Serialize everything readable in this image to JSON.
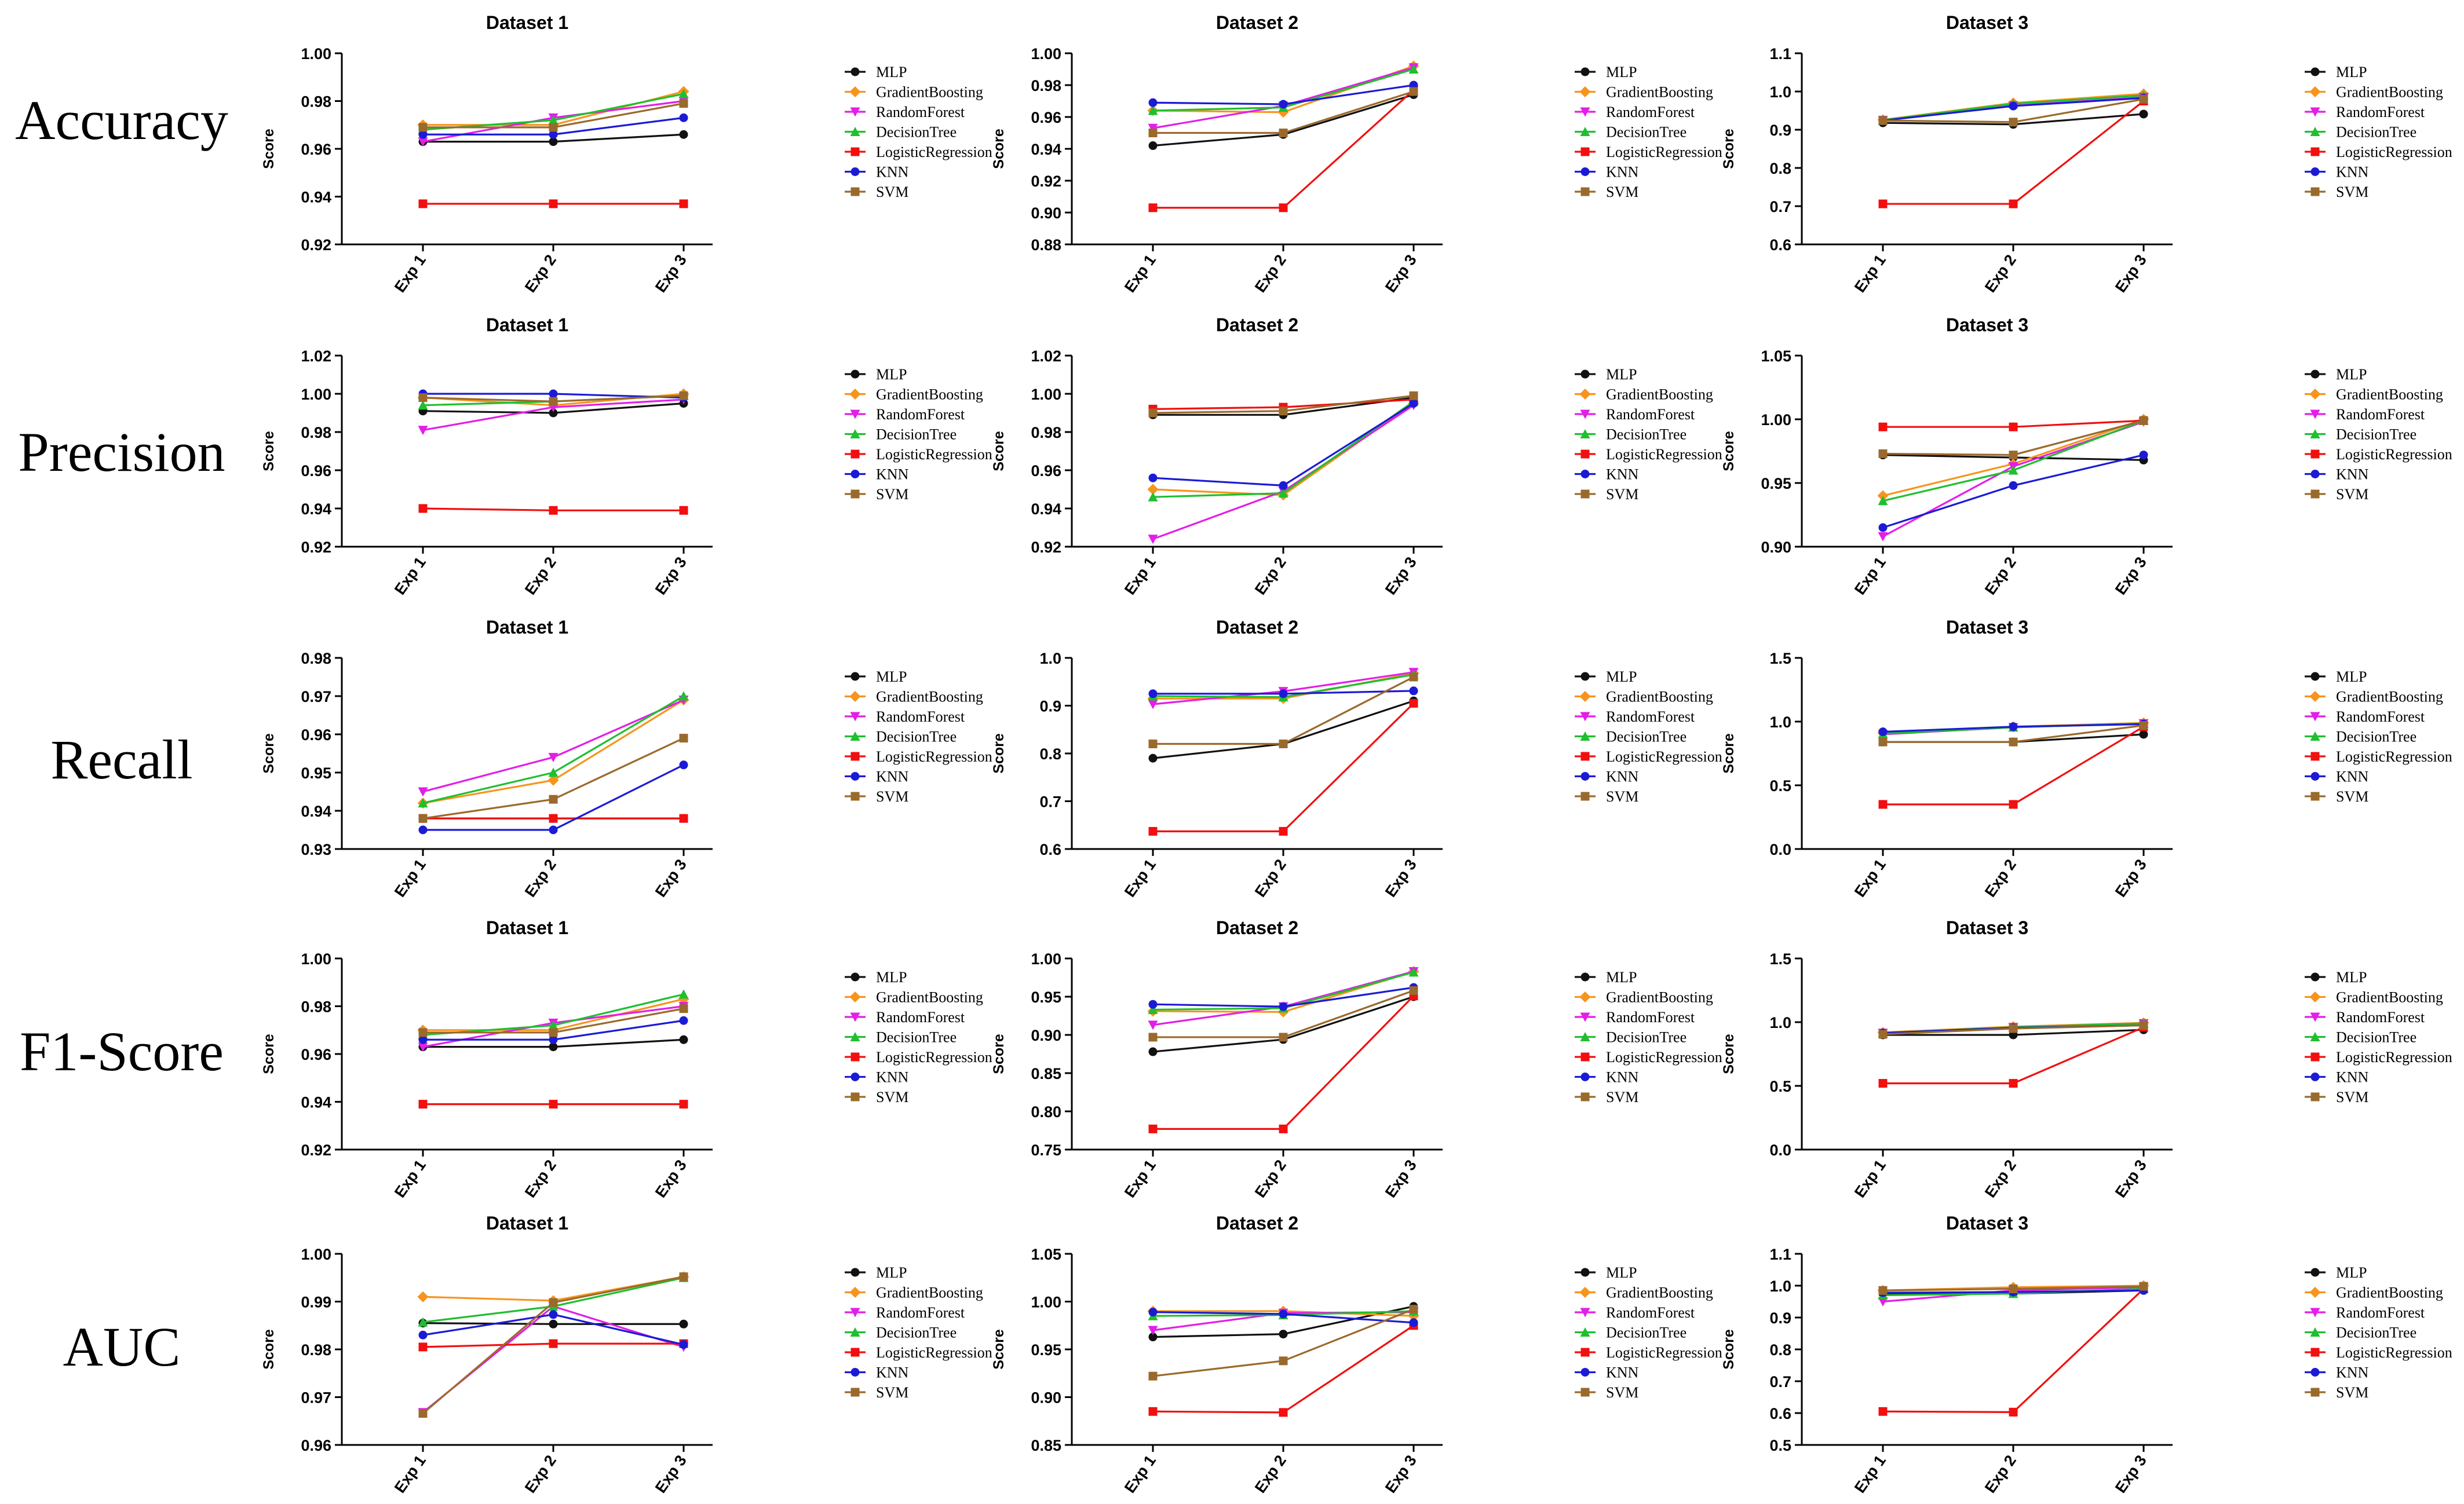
{
  "series_names": [
    "MLP",
    "GradientBoosting",
    "RandomForest",
    "DecisionTree",
    "LogisticRegression",
    "KNN",
    "SVM"
  ],
  "series_colors": [
    "#111111",
    "#f7941d",
    "#e31ee8",
    "#1fbf2f",
    "#f20f0f",
    "#1b1bd6",
    "#9a6a2c"
  ],
  "y_axis_label": "Score",
  "x_categories": [
    "Exp 1",
    "Exp 2",
    "Exp 3"
  ],
  "row_labels": [
    "Accuracy",
    "Precision",
    "Recall",
    "F1-Score",
    "AUC"
  ],
  "chart_data": [
    {
      "type": "line",
      "metric": "Accuracy",
      "title": "Dataset 1",
      "ylim": [
        0.92,
        1.0
      ],
      "yticks": [
        0.92,
        0.94,
        0.96,
        0.98,
        1.0
      ],
      "tick_decimals": 2,
      "series": [
        {
          "name": "MLP",
          "values": [
            0.963,
            0.963,
            0.966
          ]
        },
        {
          "name": "GradientBoosting",
          "values": [
            0.97,
            0.97,
            0.984
          ]
        },
        {
          "name": "RandomForest",
          "values": [
            0.963,
            0.973,
            0.98
          ]
        },
        {
          "name": "DecisionTree",
          "values": [
            0.968,
            0.972,
            0.983
          ]
        },
        {
          "name": "LogisticRegression",
          "values": [
            0.937,
            0.937,
            0.937
          ]
        },
        {
          "name": "KNN",
          "values": [
            0.966,
            0.966,
            0.973
          ]
        },
        {
          "name": "SVM",
          "values": [
            0.969,
            0.969,
            0.979
          ]
        }
      ]
    },
    {
      "type": "line",
      "metric": "Accuracy",
      "title": "Dataset 2",
      "ylim": [
        0.88,
        1.0
      ],
      "yticks": [
        0.88,
        0.9,
        0.92,
        0.94,
        0.96,
        0.98,
        1.0
      ],
      "tick_decimals": 2,
      "series": [
        {
          "name": "MLP",
          "values": [
            0.942,
            0.949,
            0.974
          ]
        },
        {
          "name": "GradientBoosting",
          "values": [
            0.964,
            0.963,
            0.992
          ]
        },
        {
          "name": "RandomForest",
          "values": [
            0.953,
            0.967,
            0.991
          ]
        },
        {
          "name": "DecisionTree",
          "values": [
            0.964,
            0.966,
            0.99
          ]
        },
        {
          "name": "LogisticRegression",
          "values": [
            0.903,
            0.903,
            0.977
          ]
        },
        {
          "name": "KNN",
          "values": [
            0.969,
            0.968,
            0.98
          ]
        },
        {
          "name": "SVM",
          "values": [
            0.95,
            0.95,
            0.976
          ]
        }
      ]
    },
    {
      "type": "line",
      "metric": "Accuracy",
      "title": "Dataset 3",
      "ylim": [
        0.6,
        1.1
      ],
      "yticks": [
        0.6,
        0.7,
        0.8,
        0.9,
        1.0,
        1.1
      ],
      "tick_decimals": 1,
      "series": [
        {
          "name": "MLP",
          "values": [
            0.918,
            0.914,
            0.941
          ]
        },
        {
          "name": "GradientBoosting",
          "values": [
            0.926,
            0.97,
            0.994
          ]
        },
        {
          "name": "RandomForest",
          "values": [
            0.925,
            0.963,
            0.985
          ]
        },
        {
          "name": "DecisionTree",
          "values": [
            0.925,
            0.968,
            0.99
          ]
        },
        {
          "name": "LogisticRegression",
          "values": [
            0.706,
            0.706,
            0.975
          ]
        },
        {
          "name": "KNN",
          "values": [
            0.924,
            0.962,
            0.983
          ]
        },
        {
          "name": "SVM",
          "values": [
            0.924,
            0.92,
            0.98
          ]
        }
      ]
    },
    {
      "type": "line",
      "metric": "Precision",
      "title": "Dataset 1",
      "ylim": [
        0.92,
        1.02
      ],
      "yticks": [
        0.92,
        0.94,
        0.96,
        0.98,
        1.0,
        1.02
      ],
      "tick_decimals": 2,
      "series": [
        {
          "name": "MLP",
          "values": [
            0.991,
            0.99,
            0.995
          ]
        },
        {
          "name": "GradientBoosting",
          "values": [
            0.998,
            0.994,
            1.0
          ]
        },
        {
          "name": "RandomForest",
          "values": [
            0.981,
            0.993,
            0.997
          ]
        },
        {
          "name": "DecisionTree",
          "values": [
            0.994,
            0.996,
            0.999
          ]
        },
        {
          "name": "LogisticRegression",
          "values": [
            0.94,
            0.939,
            0.939
          ]
        },
        {
          "name": "KNN",
          "values": [
            1.0,
            1.0,
            0.998
          ]
        },
        {
          "name": "SVM",
          "values": [
            0.998,
            0.996,
            0.999
          ]
        }
      ]
    },
    {
      "type": "line",
      "metric": "Precision",
      "title": "Dataset 2",
      "ylim": [
        0.92,
        1.02
      ],
      "yticks": [
        0.92,
        0.94,
        0.96,
        0.98,
        1.0,
        1.02
      ],
      "tick_decimals": 2,
      "series": [
        {
          "name": "MLP",
          "values": [
            0.989,
            0.989,
            0.998
          ]
        },
        {
          "name": "GradientBoosting",
          "values": [
            0.95,
            0.947,
            0.995
          ]
        },
        {
          "name": "RandomForest",
          "values": [
            0.924,
            0.949,
            0.994
          ]
        },
        {
          "name": "DecisionTree",
          "values": [
            0.946,
            0.948,
            0.996
          ]
        },
        {
          "name": "LogisticRegression",
          "values": [
            0.992,
            0.993,
            0.997
          ]
        },
        {
          "name": "KNN",
          "values": [
            0.956,
            0.952,
            0.995
          ]
        },
        {
          "name": "SVM",
          "values": [
            0.99,
            0.991,
            0.999
          ]
        }
      ]
    },
    {
      "type": "line",
      "metric": "Precision",
      "title": "Dataset 3",
      "ylim": [
        0.9,
        1.05
      ],
      "yticks": [
        0.9,
        0.95,
        1.0,
        1.05
      ],
      "tick_decimals": 2,
      "series": [
        {
          "name": "MLP",
          "values": [
            0.972,
            0.97,
            0.968
          ]
        },
        {
          "name": "GradientBoosting",
          "values": [
            0.94,
            0.965,
            1.0
          ]
        },
        {
          "name": "RandomForest",
          "values": [
            0.908,
            0.963,
            0.998
          ]
        },
        {
          "name": "DecisionTree",
          "values": [
            0.936,
            0.96,
            0.999
          ]
        },
        {
          "name": "LogisticRegression",
          "values": [
            0.994,
            0.994,
            0.999
          ]
        },
        {
          "name": "KNN",
          "values": [
            0.915,
            0.948,
            0.972
          ]
        },
        {
          "name": "SVM",
          "values": [
            0.973,
            0.972,
            0.999
          ]
        }
      ]
    },
    {
      "type": "line",
      "metric": "Recall",
      "title": "Dataset 1",
      "ylim": [
        0.93,
        0.98
      ],
      "yticks": [
        0.93,
        0.94,
        0.95,
        0.96,
        0.97,
        0.98
      ],
      "tick_decimals": 2,
      "series": [
        {
          "name": "MLP",
          "values": [
            0.938,
            0.938,
            0.938
          ]
        },
        {
          "name": "GradientBoosting",
          "values": [
            0.942,
            0.948,
            0.969
          ]
        },
        {
          "name": "RandomForest",
          "values": [
            0.945,
            0.954,
            0.969
          ]
        },
        {
          "name": "DecisionTree",
          "values": [
            0.942,
            0.95,
            0.97
          ]
        },
        {
          "name": "LogisticRegression",
          "values": [
            0.938,
            0.938,
            0.938
          ]
        },
        {
          "name": "KNN",
          "values": [
            0.935,
            0.935,
            0.952
          ]
        },
        {
          "name": "SVM",
          "values": [
            0.938,
            0.943,
            0.959
          ]
        }
      ]
    },
    {
      "type": "line",
      "metric": "Recall",
      "title": "Dataset 2",
      "ylim": [
        0.6,
        1.0
      ],
      "yticks": [
        0.6,
        0.7,
        0.8,
        0.9,
        1.0
      ],
      "tick_decimals": 1,
      "series": [
        {
          "name": "MLP",
          "values": [
            0.79,
            0.82,
            0.91
          ]
        },
        {
          "name": "GradientBoosting",
          "values": [
            0.915,
            0.915,
            0.968
          ]
        },
        {
          "name": "RandomForest",
          "values": [
            0.903,
            0.93,
            0.97
          ]
        },
        {
          "name": "DecisionTree",
          "values": [
            0.92,
            0.918,
            0.965
          ]
        },
        {
          "name": "LogisticRegression",
          "values": [
            0.637,
            0.637,
            0.905
          ]
        },
        {
          "name": "KNN",
          "values": [
            0.925,
            0.925,
            0.931
          ]
        },
        {
          "name": "SVM",
          "values": [
            0.82,
            0.82,
            0.96
          ]
        }
      ]
    },
    {
      "type": "line",
      "metric": "Recall",
      "title": "Dataset 3",
      "ylim": [
        0.0,
        1.5
      ],
      "yticks": [
        0.0,
        0.5,
        1.0,
        1.5
      ],
      "tick_decimals": 1,
      "series": [
        {
          "name": "MLP",
          "values": [
            0.84,
            0.84,
            0.9
          ]
        },
        {
          "name": "GradientBoosting",
          "values": [
            0.91,
            0.96,
            0.99
          ]
        },
        {
          "name": "RandomForest",
          "values": [
            0.9,
            0.955,
            0.985
          ]
        },
        {
          "name": "DecisionTree",
          "values": [
            0.905,
            0.955,
            0.985
          ]
        },
        {
          "name": "LogisticRegression",
          "values": [
            0.35,
            0.35,
            0.96
          ]
        },
        {
          "name": "KNN",
          "values": [
            0.92,
            0.96,
            0.98
          ]
        },
        {
          "name": "SVM",
          "values": [
            0.84,
            0.84,
            0.97
          ]
        }
      ]
    },
    {
      "type": "line",
      "metric": "F1-Score",
      "title": "Dataset 1",
      "ylim": [
        0.92,
        1.0
      ],
      "yticks": [
        0.92,
        0.94,
        0.96,
        0.98,
        1.0
      ],
      "tick_decimals": 2,
      "series": [
        {
          "name": "MLP",
          "values": [
            0.963,
            0.963,
            0.966
          ]
        },
        {
          "name": "GradientBoosting",
          "values": [
            0.97,
            0.97,
            0.983
          ]
        },
        {
          "name": "RandomForest",
          "values": [
            0.963,
            0.973,
            0.98
          ]
        },
        {
          "name": "DecisionTree",
          "values": [
            0.968,
            0.972,
            0.985
          ]
        },
        {
          "name": "LogisticRegression",
          "values": [
            0.939,
            0.939,
            0.939
          ]
        },
        {
          "name": "KNN",
          "values": [
            0.966,
            0.966,
            0.974
          ]
        },
        {
          "name": "SVM",
          "values": [
            0.969,
            0.969,
            0.979
          ]
        }
      ]
    },
    {
      "type": "line",
      "metric": "F1-Score",
      "title": "Dataset 2",
      "ylim": [
        0.75,
        1.0
      ],
      "yticks": [
        0.75,
        0.8,
        0.85,
        0.9,
        0.95,
        1.0
      ],
      "tick_decimals": 2,
      "series": [
        {
          "name": "MLP",
          "values": [
            0.878,
            0.894,
            0.95
          ]
        },
        {
          "name": "GradientBoosting",
          "values": [
            0.931,
            0.93,
            0.983
          ]
        },
        {
          "name": "RandomForest",
          "values": [
            0.913,
            0.937,
            0.983
          ]
        },
        {
          "name": "DecisionTree",
          "values": [
            0.933,
            0.935,
            0.982
          ]
        },
        {
          "name": "LogisticRegression",
          "values": [
            0.777,
            0.777,
            0.951
          ]
        },
        {
          "name": "KNN",
          "values": [
            0.94,
            0.937,
            0.962
          ]
        },
        {
          "name": "SVM",
          "values": [
            0.897,
            0.897,
            0.958
          ]
        }
      ]
    },
    {
      "type": "line",
      "metric": "F1-Score",
      "title": "Dataset 3",
      "ylim": [
        0.0,
        1.5
      ],
      "yticks": [
        0.0,
        0.5,
        1.0,
        1.5
      ],
      "tick_decimals": 1,
      "series": [
        {
          "name": "MLP",
          "values": [
            0.9,
            0.9,
            0.94
          ]
        },
        {
          "name": "GradientBoosting",
          "values": [
            0.92,
            0.965,
            0.995
          ]
        },
        {
          "name": "RandomForest",
          "values": [
            0.915,
            0.96,
            0.99
          ]
        },
        {
          "name": "DecisionTree",
          "values": [
            0.915,
            0.96,
            0.99
          ]
        },
        {
          "name": "LogisticRegression",
          "values": [
            0.52,
            0.52,
            0.96
          ]
        },
        {
          "name": "KNN",
          "values": [
            0.915,
            0.955,
            0.975
          ]
        },
        {
          "name": "SVM",
          "values": [
            0.905,
            0.95,
            0.975
          ]
        }
      ]
    },
    {
      "type": "line",
      "metric": "AUC",
      "title": "Dataset 1",
      "ylim": [
        0.96,
        1.0
      ],
      "yticks": [
        0.96,
        0.97,
        0.98,
        0.99,
        1.0
      ],
      "tick_decimals": 2,
      "series": [
        {
          "name": "MLP",
          "values": [
            0.9855,
            0.9853,
            0.9853
          ]
        },
        {
          "name": "GradientBoosting",
          "values": [
            0.991,
            0.9902,
            0.9952
          ]
        },
        {
          "name": "RandomForest",
          "values": [
            0.9668,
            0.989,
            0.9805
          ]
        },
        {
          "name": "DecisionTree",
          "values": [
            0.9857,
            0.989,
            0.995
          ]
        },
        {
          "name": "LogisticRegression",
          "values": [
            0.9805,
            0.9812,
            0.9812
          ]
        },
        {
          "name": "KNN",
          "values": [
            0.983,
            0.9873,
            0.981
          ]
        },
        {
          "name": "SVM",
          "values": [
            0.9666,
            0.9898,
            0.9952
          ]
        }
      ]
    },
    {
      "type": "line",
      "metric": "AUC",
      "title": "Dataset 2",
      "ylim": [
        0.85,
        1.05
      ],
      "yticks": [
        0.85,
        0.9,
        0.95,
        1.0,
        1.05
      ],
      "tick_decimals": 2,
      "series": [
        {
          "name": "MLP",
          "values": [
            0.963,
            0.966,
            0.995
          ]
        },
        {
          "name": "GradientBoosting",
          "values": [
            0.99,
            0.99,
            0.985
          ]
        },
        {
          "name": "RandomForest",
          "values": [
            0.97,
            0.988,
            0.989
          ]
        },
        {
          "name": "DecisionTree",
          "values": [
            0.985,
            0.986,
            0.99
          ]
        },
        {
          "name": "LogisticRegression",
          "values": [
            0.885,
            0.884,
            0.975
          ]
        },
        {
          "name": "KNN",
          "values": [
            0.989,
            0.987,
            0.978
          ]
        },
        {
          "name": "SVM",
          "values": [
            0.922,
            0.938,
            0.992
          ]
        }
      ]
    },
    {
      "type": "line",
      "metric": "AUC",
      "title": "Dataset 3",
      "ylim": [
        0.5,
        1.1
      ],
      "yticks": [
        0.5,
        0.6,
        0.7,
        0.8,
        0.9,
        1.0,
        1.1
      ],
      "tick_decimals": 1,
      "series": [
        {
          "name": "MLP",
          "values": [
            0.975,
            0.975,
            0.985
          ]
        },
        {
          "name": "GradientBoosting",
          "values": [
            0.985,
            0.995,
            1.0
          ]
        },
        {
          "name": "RandomForest",
          "values": [
            0.95,
            0.985,
            0.995
          ]
        },
        {
          "name": "DecisionTree",
          "values": [
            0.97,
            0.975,
            0.99
          ]
        },
        {
          "name": "LogisticRegression",
          "values": [
            0.605,
            0.603,
            0.99
          ]
        },
        {
          "name": "KNN",
          "values": [
            0.978,
            0.98,
            0.985
          ]
        },
        {
          "name": "SVM",
          "values": [
            0.985,
            0.99,
            0.998
          ]
        }
      ]
    }
  ]
}
